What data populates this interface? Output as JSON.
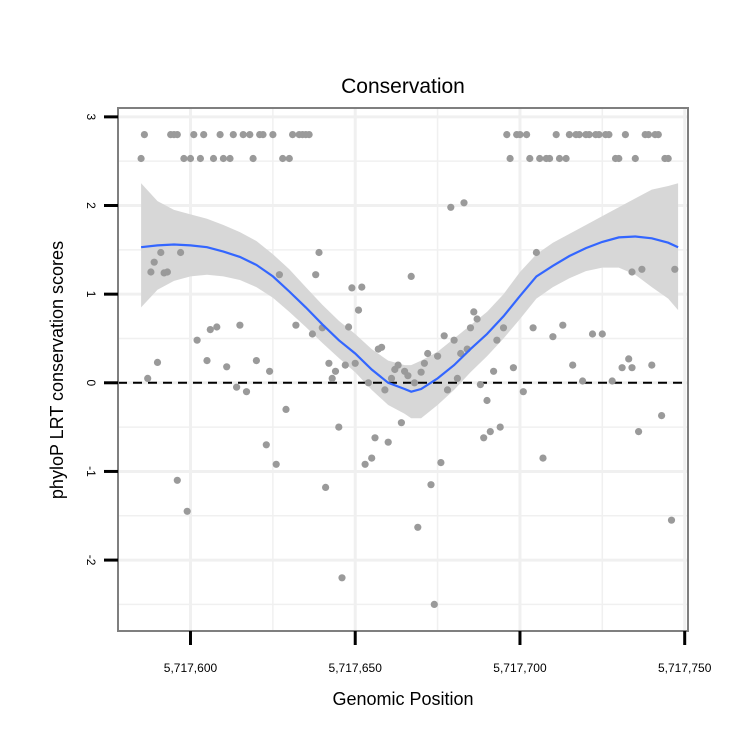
{
  "chart_data": {
    "type": "scatter",
    "title": "Conservation",
    "xlabel": "Genomic Position",
    "ylabel": "phyloP LRT conservation scores",
    "xlim": [
      5717578,
      5717751
    ],
    "ylim": [
      -2.8,
      3.1
    ],
    "x_ticks": [
      5717600,
      5717650,
      5717700,
      5717750
    ],
    "x_tick_labels": [
      "5,717,600",
      "5,717,650",
      "5,717,700",
      "5,717,750"
    ],
    "y_ticks": [
      -2,
      -1,
      0,
      1,
      2,
      3
    ],
    "y_tick_labels": [
      "-2",
      "-1",
      "0",
      "1",
      "2",
      "3"
    ],
    "reference_line": {
      "y": 0,
      "style": "dashed"
    },
    "grid": true,
    "colors": {
      "points": "#9a9a9a",
      "smooth": "#3366ff",
      "band": "#d5d5d5",
      "grid": "#f0f0f0",
      "border": "#7f7f7f"
    },
    "points": [
      [
        5717585,
        2.53
      ],
      [
        5717586,
        2.8
      ],
      [
        5717587,
        0.05
      ],
      [
        5717588,
        1.25
      ],
      [
        5717589,
        1.36
      ],
      [
        5717590,
        0.23
      ],
      [
        5717591,
        1.47
      ],
      [
        5717592,
        1.24
      ],
      [
        5717593,
        1.25
      ],
      [
        5717594,
        2.8
      ],
      [
        5717595,
        2.8
      ],
      [
        5717596,
        2.8
      ],
      [
        5717597,
        1.47
      ],
      [
        5717596,
        -1.1
      ],
      [
        5717598,
        2.53
      ],
      [
        5717599,
        -1.45
      ],
      [
        5717600,
        2.53
      ],
      [
        5717601,
        2.8
      ],
      [
        5717602,
        0.48
      ],
      [
        5717603,
        2.53
      ],
      [
        5717604,
        2.8
      ],
      [
        5717605,
        0.25
      ],
      [
        5717606,
        0.6
      ],
      [
        5717607,
        2.53
      ],
      [
        5717608,
        0.63
      ],
      [
        5717609,
        2.8
      ],
      [
        5717610,
        2.53
      ],
      [
        5717611,
        0.18
      ],
      [
        5717612,
        2.53
      ],
      [
        5717613,
        2.8
      ],
      [
        5717614,
        -0.05
      ],
      [
        5717615,
        0.65
      ],
      [
        5717616,
        2.8
      ],
      [
        5717617,
        -0.1
      ],
      [
        5717618,
        2.8
      ],
      [
        5717619,
        2.53
      ],
      [
        5717620,
        0.25
      ],
      [
        5717621,
        2.8
      ],
      [
        5717622,
        2.8
      ],
      [
        5717623,
        -0.7
      ],
      [
        5717624,
        0.13
      ],
      [
        5717625,
        2.8
      ],
      [
        5717626,
        -0.92
      ],
      [
        5717627,
        1.22
      ],
      [
        5717628,
        2.53
      ],
      [
        5717629,
        -0.3
      ],
      [
        5717630,
        2.53
      ],
      [
        5717631,
        2.8
      ],
      [
        5717632,
        0.65
      ],
      [
        5717633,
        2.8
      ],
      [
        5717634,
        2.8
      ],
      [
        5717635,
        2.8
      ],
      [
        5717636,
        2.8
      ],
      [
        5717637,
        0.55
      ],
      [
        5717638,
        1.22
      ],
      [
        5717639,
        1.47
      ],
      [
        5717640,
        0.62
      ],
      [
        5717641,
        -1.18
      ],
      [
        5717642,
        0.22
      ],
      [
        5717643,
        0.05
      ],
      [
        5717644,
        0.13
      ],
      [
        5717645,
        -0.5
      ],
      [
        5717646,
        -2.2
      ],
      [
        5717647,
        0.2
      ],
      [
        5717648,
        0.63
      ],
      [
        5717649,
        1.07
      ],
      [
        5717650,
        0.22
      ],
      [
        5717651,
        0.82
      ],
      [
        5717652,
        1.08
      ],
      [
        5717653,
        -0.92
      ],
      [
        5717654,
        0.0
      ],
      [
        5717655,
        -0.85
      ],
      [
        5717656,
        -0.62
      ],
      [
        5717657,
        0.38
      ],
      [
        5717658,
        0.4
      ],
      [
        5717659,
        -0.08
      ],
      [
        5717660,
        -0.67
      ],
      [
        5717661,
        0.05
      ],
      [
        5717662,
        0.15
      ],
      [
        5717663,
        0.2
      ],
      [
        5717664,
        -0.45
      ],
      [
        5717665,
        0.13
      ],
      [
        5717666,
        0.08
      ],
      [
        5717667,
        1.2
      ],
      [
        5717668,
        0.0
      ],
      [
        5717669,
        -1.63
      ],
      [
        5717670,
        0.12
      ],
      [
        5717671,
        0.22
      ],
      [
        5717672,
        0.33
      ],
      [
        5717673,
        -1.15
      ],
      [
        5717674,
        -2.5
      ],
      [
        5717675,
        0.3
      ],
      [
        5717676,
        -0.9
      ],
      [
        5717677,
        0.53
      ],
      [
        5717678,
        -0.08
      ],
      [
        5717679,
        1.98
      ],
      [
        5717680,
        0.48
      ],
      [
        5717681,
        0.05
      ],
      [
        5717682,
        0.33
      ],
      [
        5717683,
        2.03
      ],
      [
        5717684,
        0.38
      ],
      [
        5717685,
        0.62
      ],
      [
        5717686,
        0.8
      ],
      [
        5717687,
        0.72
      ],
      [
        5717688,
        -0.02
      ],
      [
        5717689,
        -0.62
      ],
      [
        5717690,
        -0.2
      ],
      [
        5717691,
        -0.55
      ],
      [
        5717692,
        0.13
      ],
      [
        5717693,
        0.48
      ],
      [
        5717694,
        -0.5
      ],
      [
        5717695,
        0.62
      ],
      [
        5717696,
        2.8
      ],
      [
        5717697,
        2.53
      ],
      [
        5717698,
        0.17
      ],
      [
        5717699,
        2.8
      ],
      [
        5717700,
        2.8
      ],
      [
        5717701,
        -0.1
      ],
      [
        5717702,
        2.8
      ],
      [
        5717703,
        2.53
      ],
      [
        5717704,
        0.62
      ],
      [
        5717705,
        1.47
      ],
      [
        5717706,
        2.53
      ],
      [
        5717707,
        -0.85
      ],
      [
        5717708,
        2.53
      ],
      [
        5717709,
        2.53
      ],
      [
        5717710,
        0.52
      ],
      [
        5717711,
        2.8
      ],
      [
        5717712,
        2.53
      ],
      [
        5717713,
        0.65
      ],
      [
        5717714,
        2.53
      ],
      [
        5717715,
        2.8
      ],
      [
        5717716,
        0.2
      ],
      [
        5717717,
        2.8
      ],
      [
        5717718,
        2.8
      ],
      [
        5717719,
        0.02
      ],
      [
        5717720,
        2.8
      ],
      [
        5717721,
        2.8
      ],
      [
        5717722,
        0.55
      ],
      [
        5717723,
        2.8
      ],
      [
        5717724,
        2.8
      ],
      [
        5717725,
        0.55
      ],
      [
        5717726,
        2.8
      ],
      [
        5717727,
        2.8
      ],
      [
        5717728,
        0.02
      ],
      [
        5717729,
        2.53
      ],
      [
        5717730,
        2.53
      ],
      [
        5717731,
        0.17
      ],
      [
        5717732,
        2.8
      ],
      [
        5717733,
        0.27
      ],
      [
        5717734,
        1.25
      ],
      [
        5717735,
        2.53
      ],
      [
        5717736,
        -0.55
      ],
      [
        5717737,
        1.28
      ],
      [
        5717738,
        2.8
      ],
      [
        5717739,
        2.8
      ],
      [
        5717740,
        0.2
      ],
      [
        5717741,
        2.8
      ],
      [
        5717742,
        2.8
      ],
      [
        5717743,
        -0.37
      ],
      [
        5717744,
        2.53
      ],
      [
        5717745,
        2.53
      ],
      [
        5717746,
        -1.55
      ],
      [
        5717747,
        1.28
      ],
      [
        5717734,
        0.17
      ]
    ],
    "smooth": {
      "x": [
        5717585,
        5717590,
        5717595,
        5717600,
        5717605,
        5717610,
        5717615,
        5717620,
        5717625,
        5717630,
        5717635,
        5717640,
        5717645,
        5717650,
        5717655,
        5717660,
        5717665,
        5717667,
        5717670,
        5717675,
        5717680,
        5717685,
        5717690,
        5717695,
        5717700,
        5717705,
        5717710,
        5717715,
        5717720,
        5717725,
        5717730,
        5717735,
        5717740,
        5717745,
        5717748
      ],
      "y": [
        1.53,
        1.55,
        1.56,
        1.55,
        1.53,
        1.48,
        1.42,
        1.33,
        1.2,
        1.03,
        0.85,
        0.66,
        0.48,
        0.33,
        0.15,
        0.0,
        -0.07,
        -0.1,
        -0.07,
        0.05,
        0.2,
        0.38,
        0.55,
        0.75,
        0.98,
        1.2,
        1.32,
        1.43,
        1.52,
        1.59,
        1.64,
        1.65,
        1.63,
        1.58,
        1.53
      ],
      "lower": [
        0.85,
        1.05,
        1.15,
        1.2,
        1.22,
        1.2,
        1.16,
        1.08,
        0.96,
        0.8,
        0.63,
        0.45,
        0.28,
        0.12,
        -0.08,
        -0.25,
        -0.35,
        -0.4,
        -0.4,
        -0.25,
        -0.08,
        0.12,
        0.3,
        0.5,
        0.72,
        0.95,
        1.08,
        1.18,
        1.26,
        1.3,
        1.3,
        1.22,
        1.08,
        0.95,
        0.82
      ],
      "upper": [
        2.25,
        2.05,
        1.95,
        1.9,
        1.85,
        1.78,
        1.7,
        1.6,
        1.45,
        1.28,
        1.08,
        0.88,
        0.7,
        0.55,
        0.38,
        0.25,
        0.2,
        0.2,
        0.25,
        0.35,
        0.5,
        0.65,
        0.8,
        1.0,
        1.25,
        1.45,
        1.58,
        1.68,
        1.78,
        1.88,
        1.98,
        2.08,
        2.18,
        2.22,
        2.25
      ]
    }
  }
}
